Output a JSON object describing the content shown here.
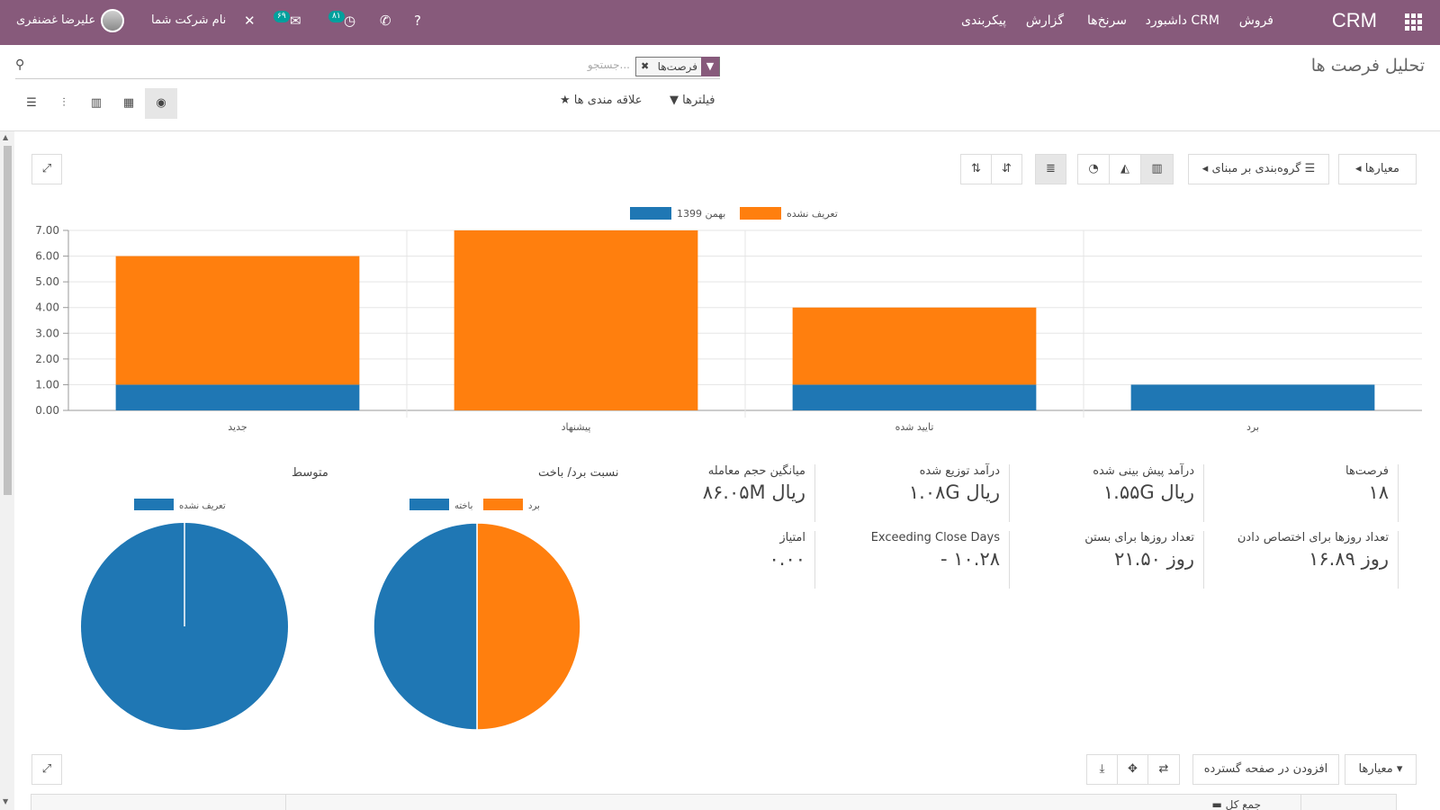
{
  "navbar": {
    "brand": "CRM",
    "menu": [
      "فروش",
      "داشبورد CRM",
      "سرنخ‌ها",
      "گزارش",
      "پیکربندی"
    ],
    "company": "نام شرکت شما",
    "user": "علیرضا غضنفری",
    "messages_badge": "۶۹",
    "activities_badge": "۸۱"
  },
  "control_panel": {
    "title": "تحلیل فرصت ها",
    "search_placeholder": "جستجو...",
    "facet_label": "فرصت‌ها",
    "filters_label": "فیلترها",
    "favorites_label": "علاقه مندی ها"
  },
  "graph_toolbar": {
    "measures_label": "معیارها",
    "groupby_label": "گروه‌بندی بر مبنای"
  },
  "chart_data": {
    "type": "bar",
    "stacked": true,
    "categories": [
      "جدید",
      "پیشنهاد",
      "تایید شده",
      "برد"
    ],
    "series": [
      {
        "name": "بهمن 1399",
        "values": [
          1,
          0,
          1,
          1
        ],
        "color": "#1f77b4"
      },
      {
        "name": "تعریف نشده",
        "values": [
          5,
          7,
          3,
          0
        ],
        "color": "#ff7f0e"
      }
    ],
    "ylim": [
      0,
      7
    ],
    "yticks": [
      "0.00",
      "1.00",
      "2.00",
      "3.00",
      "4.00",
      "5.00",
      "6.00",
      "7.00"
    ],
    "legend": "top",
    "grid": true
  },
  "kpis": [
    {
      "label": "فرصت‌ها",
      "value": "۱۸"
    },
    {
      "label": "درآمد پیش بینی شده",
      "value": "۱.۵۵G ریال"
    },
    {
      "label": "درآمد توزیع شده",
      "value": "۱.۰۸G ریال"
    },
    {
      "label": "میانگین حجم معامله",
      "value": "۸۶.۰۵M ریال"
    },
    {
      "label": "تعداد روزها برای اختصاص دادن",
      "value": "۱۶.۸۹ روز"
    },
    {
      "label": "تعداد روزها برای بستن",
      "value": "۲۱.۵۰ روز"
    },
    {
      "label": "Exceeding Close Days",
      "value": "- ۱۰.۲۸"
    },
    {
      "label": "امتیاز",
      "value": "۰.۰۰"
    }
  ],
  "pies": [
    {
      "title": "نسبت برد/ باخت",
      "legend": [
        "برد",
        "باخته"
      ],
      "values": [
        50,
        50
      ],
      "colors": [
        "#ff7f0e",
        "#1f77b4"
      ]
    },
    {
      "title": "متوسط",
      "legend": [
        "تعریف نشده"
      ],
      "values": [
        100
      ],
      "colors": [
        "#1f77b4"
      ]
    }
  ],
  "pivot_toolbar": {
    "measures_label": "معیارها",
    "add_spreadsheet_label": "افزودن در صفحه گسترده",
    "total_label": "جمع کل"
  }
}
